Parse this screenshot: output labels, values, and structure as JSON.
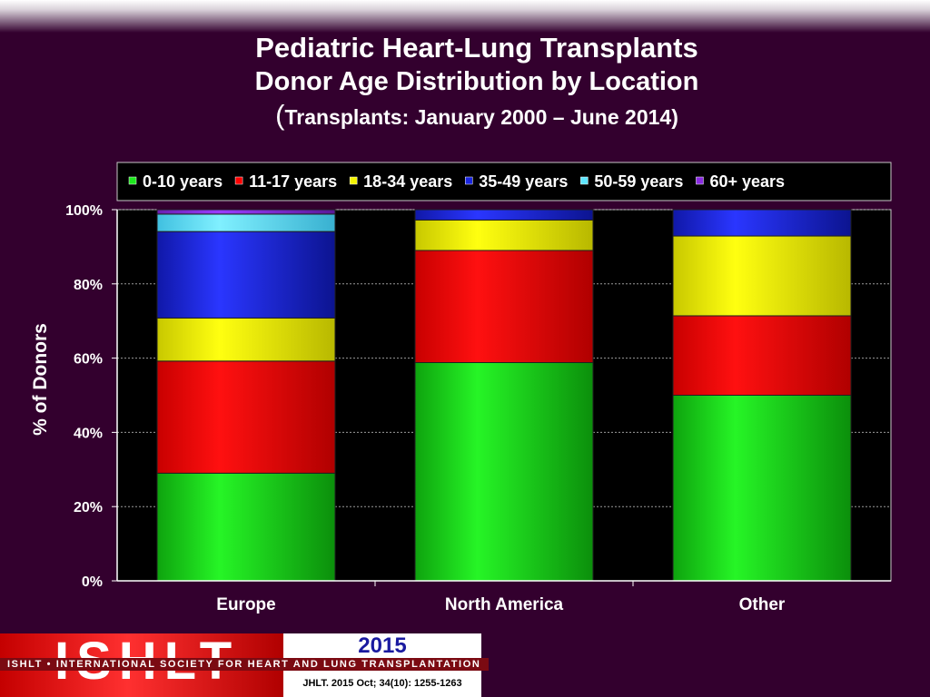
{
  "page": {
    "background": "#33002e",
    "title_line1": "Pediatric Heart-Lung Transplants",
    "title_line2": "Donor Age Distribution by Location",
    "title_line3_paren_open": "(",
    "title_line3_text": "Transplants: January 2000 – June 2014)"
  },
  "chart_data": {
    "type": "bar",
    "stacked": true,
    "percent": true,
    "categories": [
      "Europe",
      "North America",
      "Other"
    ],
    "ylabel": "% of Donors",
    "ylim": [
      0,
      100
    ],
    "yticks": [
      "0%",
      "20%",
      "40%",
      "60%",
      "80%",
      "100%"
    ],
    "grid": true,
    "legend_position": "top",
    "series": [
      {
        "name": "0-10 years",
        "color": "#1ee81e",
        "values": [
          29,
          58.8,
          50
        ]
      },
      {
        "name": "11-17 years",
        "color": "#ff0000",
        "values": [
          30.2,
          30.2,
          21.4
        ]
      },
      {
        "name": "18-34 years",
        "color": "#f4f400",
        "values": [
          11.6,
          8.2,
          21.5
        ]
      },
      {
        "name": "35-49 years",
        "color": "#1a26e0",
        "values": [
          23.3,
          2.8,
          7.1
        ]
      },
      {
        "name": "50-59 years",
        "color": "#5ee6ff",
        "values": [
          4.7,
          0,
          0
        ]
      },
      {
        "name": "60+ years",
        "color": "#8a2be2",
        "values": [
          1.2,
          0,
          0
        ]
      }
    ]
  },
  "footer": {
    "logo_text": "ISHLT",
    "banner_text": "ISHLT • INTERNATIONAL SOCIETY FOR HEART AND LUNG TRANSPLANTATION",
    "year": "2015",
    "citation": "JHLT. 2015 Oct; 34(10): 1255-1263"
  }
}
